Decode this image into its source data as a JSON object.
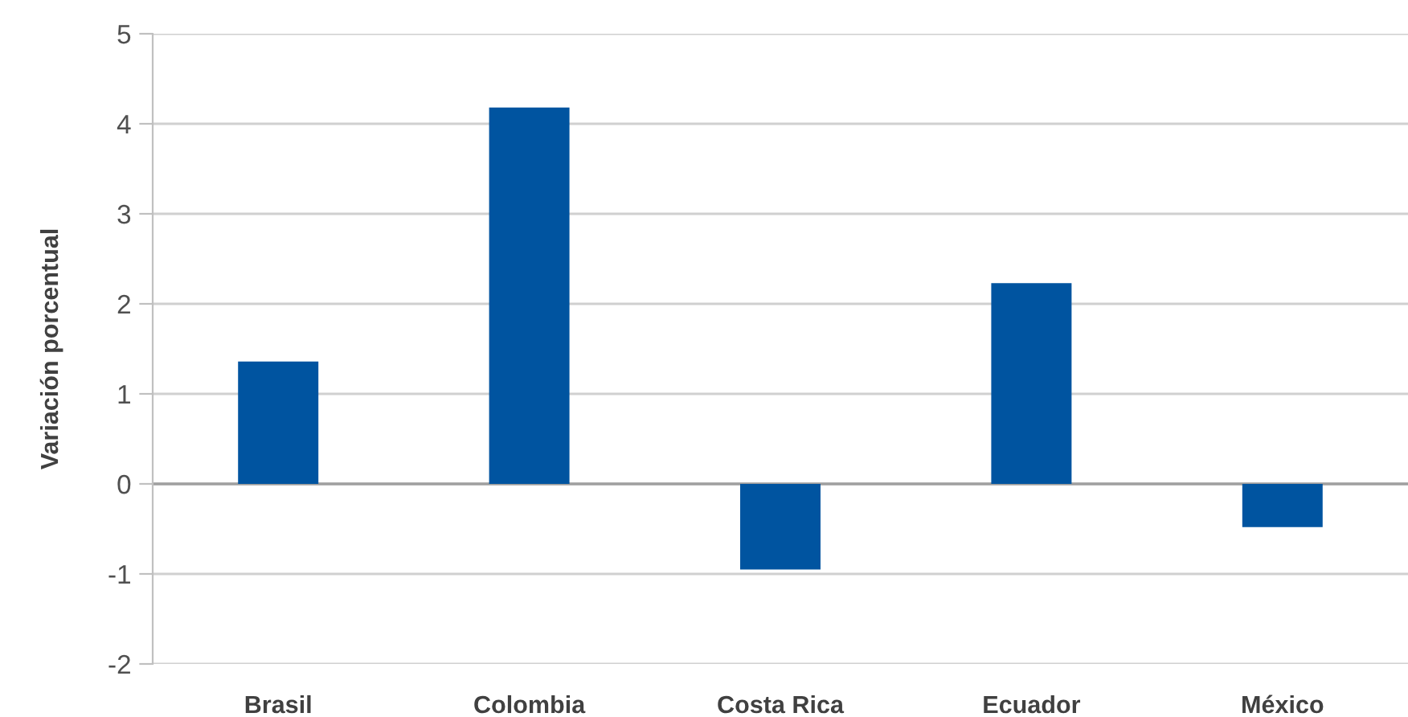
{
  "chart_data": {
    "type": "bar",
    "ylabel": "Variación porcentual",
    "categories": [
      "Brasil",
      "Colombia",
      "Costa Rica",
      "Ecuador",
      "México"
    ],
    "values": [
      1.36,
      4.18,
      -0.95,
      2.23,
      -0.48
    ],
    "color": "#0054a0",
    "ylim": [
      -2,
      5
    ],
    "yticks": [
      -2,
      -1,
      0,
      1,
      2,
      3,
      4,
      5
    ],
    "grid": "y",
    "ref_lines": [
      {
        "axis": "y",
        "value": 0,
        "color": "#a0a0a0"
      }
    ]
  }
}
